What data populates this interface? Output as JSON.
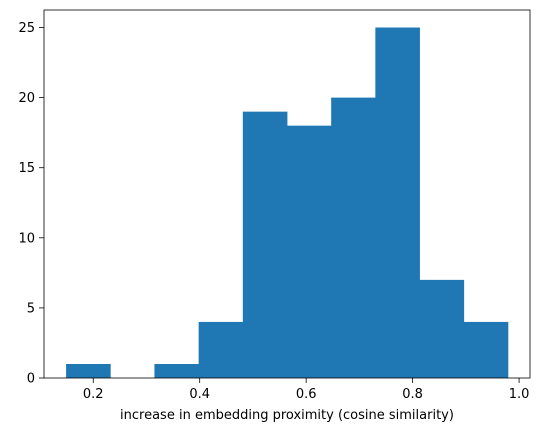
{
  "chart_data": {
    "type": "bar",
    "subtype": "histogram",
    "title": "",
    "xlabel": "increase in embedding proximity (cosine similarity)",
    "ylabel": "",
    "bins": [
      {
        "start": 0.149,
        "end": 0.232,
        "count": 1
      },
      {
        "start": 0.232,
        "end": 0.315,
        "count": 0
      },
      {
        "start": 0.315,
        "end": 0.398,
        "count": 1
      },
      {
        "start": 0.398,
        "end": 0.481,
        "count": 4
      },
      {
        "start": 0.481,
        "end": 0.564,
        "count": 19
      },
      {
        "start": 0.564,
        "end": 0.647,
        "count": 18
      },
      {
        "start": 0.647,
        "end": 0.73,
        "count": 20
      },
      {
        "start": 0.73,
        "end": 0.813,
        "count": 25
      },
      {
        "start": 0.813,
        "end": 0.896,
        "count": 7
      },
      {
        "start": 0.896,
        "end": 0.979,
        "count": 4
      }
    ],
    "xlim": [
      0.1075,
      1.0205
    ],
    "ylim": [
      0,
      26.25
    ],
    "xticks": [
      {
        "value": 0.2,
        "label": "0.2"
      },
      {
        "value": 0.4,
        "label": "0.4"
      },
      {
        "value": 0.6,
        "label": "0.6"
      },
      {
        "value": 0.8,
        "label": "0.8"
      },
      {
        "value": 1.0,
        "label": "1.0"
      }
    ],
    "yticks": [
      {
        "value": 0,
        "label": "0"
      },
      {
        "value": 5,
        "label": "5"
      },
      {
        "value": 10,
        "label": "10"
      },
      {
        "value": 15,
        "label": "15"
      },
      {
        "value": 20,
        "label": "20"
      },
      {
        "value": 25,
        "label": "25"
      }
    ],
    "grid": false,
    "bar_color": "#1f77b4"
  }
}
